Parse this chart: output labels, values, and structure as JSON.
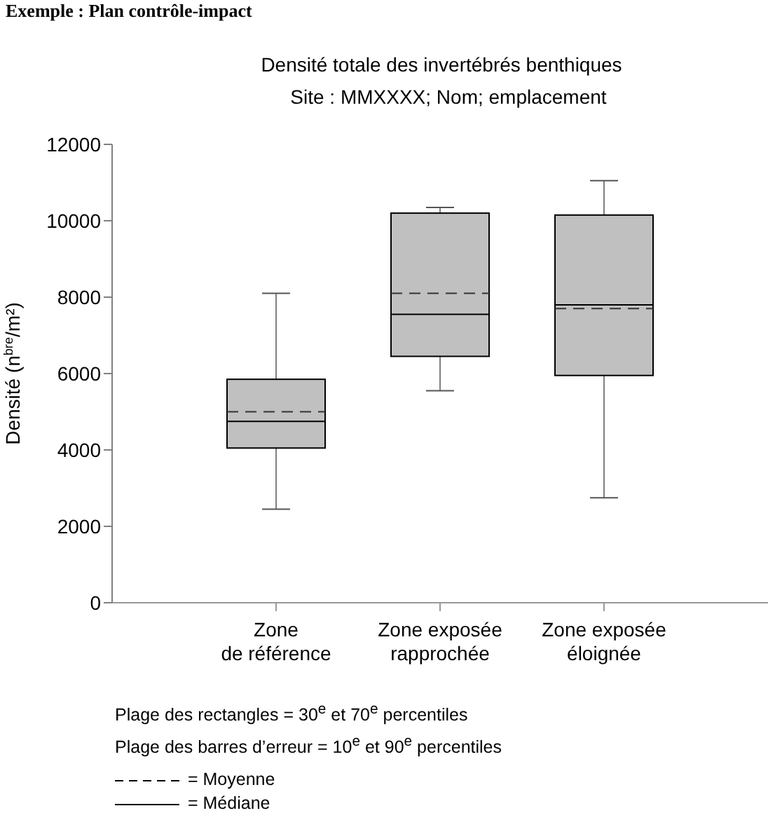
{
  "chart_data": {
    "type": "box",
    "title": "Densité totale des invertébrés benthiques",
    "subtitle": "Site : MMXXXX; Nom; emplacement",
    "ylabel": "Densité (n$^{bre}$/m²)",
    "categories": [
      "Zone\nde référence",
      "Zone exposée\nrapprochée",
      "Zone exposée\néloignée"
    ],
    "series": [
      {
        "color": "#c0c0c0",
        "boxes": [
          {
            "low": 2450,
            "q1": 4050,
            "median": 4750,
            "q3": 5850,
            "high": 8100,
            "mean": 5000
          },
          {
            "low": 5550,
            "q1": 6450,
            "median": 7550,
            "q3": 10200,
            "high": 10350,
            "mean": 8100
          },
          {
            "low": 2750,
            "q1": 5950,
            "median": 7800,
            "q3": 10150,
            "high": 11050,
            "mean": 7700
          }
        ]
      }
    ],
    "ylim": [
      0,
      12000
    ],
    "yticks": [
      0,
      2000,
      4000,
      6000,
      8000,
      10000,
      12000
    ],
    "annotations": [
      "Exemple : Plan contrôle-impact",
      "Plage des rectangles =  30$^{e}$ et 70$^{e}$ percentiles",
      "Plage des barres d’erreur = 10$^{e}$ et 90$^{e}$ percentiles",
      "= Moyenne",
      "= Médiane"
    ]
  }
}
